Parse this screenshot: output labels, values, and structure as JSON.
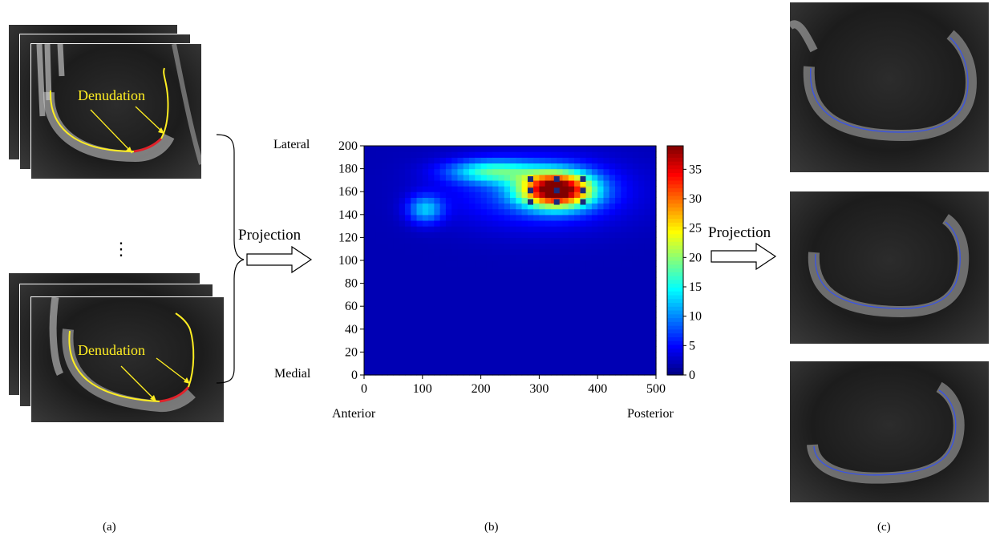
{
  "panels": {
    "a": {
      "caption": "(a)",
      "stack_top_label": "Denudation",
      "stack_bottom_label": "Denudation",
      "ellipsis": "⋮"
    },
    "b": {
      "caption": "(b)",
      "projection_left": "Projection",
      "projection_right": "Projection"
    },
    "c": {
      "caption": "(c)"
    }
  },
  "chart_data": {
    "type": "heatmap",
    "title": "",
    "xlabel": "",
    "ylabel": "",
    "xlim": [
      0,
      500
    ],
    "ylim": [
      0,
      200
    ],
    "x_ticks": [
      0,
      100,
      200,
      300,
      400,
      500
    ],
    "y_ticks": [
      0,
      20,
      40,
      60,
      80,
      100,
      120,
      140,
      160,
      180,
      200
    ],
    "x_end_labels": {
      "left": "Anterior",
      "right": "Posterior"
    },
    "y_end_labels": {
      "bottom": "Medial",
      "top": "Lateral"
    },
    "colorbar": {
      "min": 0,
      "max": 39,
      "ticks": [
        0,
        5,
        10,
        15,
        20,
        25,
        30,
        35
      ],
      "colormap": "jet"
    },
    "background_value": 2,
    "regions": [
      {
        "x_center": 330,
        "y_center": 162,
        "x_radius": 60,
        "y_radius": 15,
        "peak": 37
      },
      {
        "x_center": 220,
        "y_center": 178,
        "x_radius": 75,
        "y_radius": 10,
        "peak": 13
      },
      {
        "x_center": 105,
        "y_center": 145,
        "x_radius": 30,
        "y_radius": 12,
        "peak": 10
      },
      {
        "x_center": 300,
        "y_center": 160,
        "x_radius": 150,
        "y_radius": 30,
        "peak": 6
      }
    ],
    "markers": [
      [
        285,
        171
      ],
      [
        330,
        171
      ],
      [
        375,
        171
      ],
      [
        285,
        161
      ],
      [
        330,
        161
      ],
      [
        375,
        161
      ],
      [
        285,
        151
      ],
      [
        330,
        151
      ],
      [
        375,
        151
      ]
    ]
  }
}
